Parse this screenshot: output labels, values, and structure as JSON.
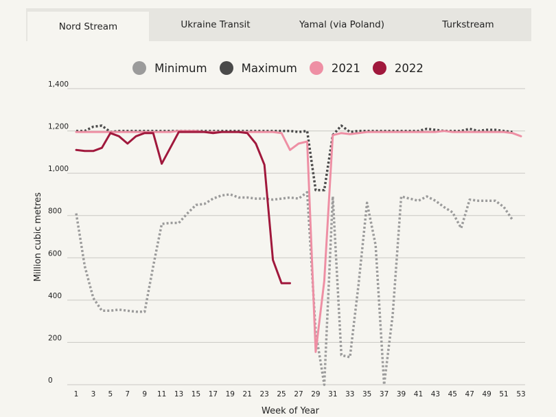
{
  "tabs": [
    {
      "label": "Nord Stream",
      "active": true
    },
    {
      "label": "Ukraine Transit",
      "active": false
    },
    {
      "label": "Yamal (via Poland)",
      "active": false
    },
    {
      "label": "Turkstream",
      "active": false
    }
  ],
  "legend": [
    {
      "label": "Minimum",
      "color": "#9b9b9b"
    },
    {
      "label": "Maximum",
      "color": "#4a4a4a"
    },
    {
      "label": "2021",
      "color": "#ee8fa4"
    },
    {
      "label": "2022",
      "color": "#a0183c"
    }
  ],
  "chart_data": {
    "type": "line",
    "xlabel": "Week of Year",
    "ylabel": "Million cubic metres",
    "xlim": [
      1,
      53
    ],
    "ylim": [
      0,
      1400
    ],
    "x_ticks": [
      1,
      3,
      5,
      7,
      9,
      11,
      13,
      15,
      17,
      19,
      21,
      23,
      25,
      27,
      29,
      31,
      33,
      35,
      37,
      39,
      41,
      43,
      45,
      47,
      49,
      51,
      53
    ],
    "y_ticks": [
      0,
      200,
      400,
      600,
      800,
      1000,
      1200,
      1400
    ],
    "y_tick_labels": [
      "0",
      "200",
      "400",
      "600",
      "800",
      "1,000",
      "1,200",
      "1,400"
    ],
    "grid": true,
    "series": [
      {
        "name": "Minimum",
        "color": "#9b9b9b",
        "style": "dotted",
        "x": [
          1,
          2,
          3,
          4,
          5,
          6,
          7,
          8,
          9,
          10,
          11,
          12,
          13,
          14,
          15,
          16,
          17,
          18,
          19,
          20,
          21,
          22,
          23,
          24,
          25,
          26,
          27,
          28,
          29,
          30,
          31,
          32,
          33,
          34,
          35,
          36,
          37,
          38,
          39,
          40,
          41,
          42,
          43,
          44,
          45,
          46,
          47,
          48,
          49,
          50,
          51,
          52
        ],
        "y": [
          810,
          560,
          410,
          350,
          350,
          355,
          350,
          345,
          345,
          560,
          760,
          765,
          765,
          810,
          850,
          855,
          880,
          895,
          900,
          885,
          885,
          880,
          880,
          875,
          880,
          885,
          880,
          910,
          250,
          0,
          890,
          140,
          130,
          470,
          860,
          660,
          0,
          330,
          890,
          880,
          870,
          890,
          870,
          840,
          815,
          740,
          875,
          870,
          870,
          870,
          840,
          780
        ]
      },
      {
        "name": "Maximum",
        "color": "#4a4a4a",
        "style": "dotted",
        "x": [
          1,
          2,
          3,
          4,
          5,
          6,
          7,
          8,
          9,
          10,
          11,
          12,
          13,
          14,
          15,
          16,
          17,
          18,
          19,
          20,
          21,
          22,
          23,
          24,
          25,
          26,
          27,
          28,
          29,
          30,
          31,
          32,
          33,
          34,
          35,
          36,
          37,
          38,
          39,
          40,
          41,
          42,
          43,
          44,
          45,
          46,
          47,
          48,
          49,
          50,
          51,
          52
        ],
        "y": [
          1200,
          1200,
          1220,
          1225,
          1195,
          1200,
          1200,
          1200,
          1200,
          1200,
          1200,
          1200,
          1200,
          1200,
          1200,
          1200,
          1200,
          1200,
          1200,
          1200,
          1200,
          1200,
          1200,
          1200,
          1200,
          1200,
          1195,
          1200,
          920,
          920,
          1180,
          1225,
          1195,
          1200,
          1200,
          1200,
          1200,
          1200,
          1200,
          1200,
          1200,
          1210,
          1205,
          1200,
          1200,
          1200,
          1210,
          1200,
          1205,
          1205,
          1200,
          1195
        ]
      },
      {
        "name": "2021",
        "color": "#ee8fa4",
        "style": "solid",
        "x": [
          1,
          2,
          3,
          4,
          5,
          6,
          7,
          8,
          9,
          10,
          11,
          12,
          13,
          14,
          15,
          16,
          17,
          18,
          19,
          20,
          21,
          22,
          23,
          24,
          25,
          26,
          27,
          28,
          29,
          30,
          31,
          32,
          33,
          34,
          35,
          36,
          37,
          38,
          39,
          40,
          41,
          42,
          43,
          44,
          45,
          46,
          47,
          48,
          49,
          50,
          51,
          52,
          53
        ],
        "y": [
          1195,
          1195,
          1195,
          1195,
          1195,
          1195,
          1195,
          1195,
          1195,
          1195,
          1195,
          1195,
          1200,
          1200,
          1200,
          1195,
          1195,
          1195,
          1195,
          1195,
          1195,
          1195,
          1195,
          1195,
          1190,
          1110,
          1140,
          1150,
          155,
          490,
          1180,
          1190,
          1185,
          1190,
          1195,
          1195,
          1195,
          1195,
          1195,
          1195,
          1195,
          1195,
          1195,
          1200,
          1195,
          1195,
          1195,
          1195,
          1195,
          1195,
          1195,
          1190,
          1175
        ]
      },
      {
        "name": "2022",
        "color": "#a0183c",
        "style": "solid",
        "x": [
          1,
          2,
          3,
          4,
          5,
          6,
          7,
          8,
          9,
          10,
          11,
          12,
          13,
          14,
          15,
          16,
          17,
          18,
          19,
          20,
          21,
          22,
          23,
          24,
          25,
          26
        ],
        "y": [
          1110,
          1105,
          1105,
          1120,
          1190,
          1175,
          1140,
          1175,
          1190,
          1190,
          1045,
          1120,
          1195,
          1195,
          1195,
          1195,
          1190,
          1195,
          1195,
          1195,
          1190,
          1140,
          1040,
          590,
          480,
          480
        ]
      }
    ]
  }
}
